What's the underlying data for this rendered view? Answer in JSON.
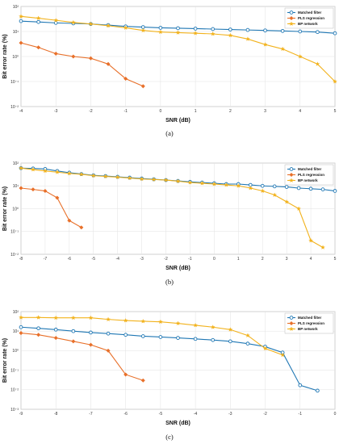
{
  "chart_data": [
    {
      "type": "line",
      "caption": "(a)",
      "xlabel": "SNR (dB)",
      "ylabel": "Bit error rate (%)",
      "xlim": [
        -4,
        5
      ],
      "ylim": [
        0.01,
        100
      ],
      "yscale": "log",
      "xticks": [
        "-4",
        "-3",
        "-2",
        "-1",
        "0",
        "1",
        "2",
        "3",
        "4",
        "5"
      ],
      "yticks": [
        "10⁻²",
        "10⁻¹",
        "10⁰",
        "10¹",
        "10²"
      ],
      "legend": "top-right",
      "series": [
        {
          "name": "Matched filter",
          "color": "#1f77b4",
          "marker": "circle",
          "x": [
            -4,
            -3.5,
            -3,
            -2.5,
            -2,
            -1.5,
            -1,
            -0.5,
            0,
            0.5,
            1,
            1.5,
            2,
            2.5,
            3,
            3.5,
            4,
            4.5,
            5
          ],
          "y": [
            26,
            24,
            22,
            21,
            20,
            18,
            16,
            15,
            14,
            13.5,
            13,
            12.5,
            12,
            11.5,
            11,
            10.5,
            10,
            9.5,
            8.5
          ]
        },
        {
          "name": "PLS regression",
          "color": "#e8702a",
          "marker": "diamond",
          "x": [
            -4,
            -3.5,
            -3,
            -2.5,
            -2,
            -1.5,
            -1,
            -0.5
          ],
          "y": [
            3.5,
            2.3,
            1.3,
            1.0,
            0.85,
            0.5,
            0.13,
            0.065
          ]
        },
        {
          "name": "BP network",
          "color": "#f2b21c",
          "marker": "star",
          "x": [
            -4,
            -3.5,
            -3,
            -2.5,
            -2,
            -1.5,
            -1,
            -0.5,
            0,
            0.5,
            1,
            1.5,
            2,
            2.5,
            3,
            3.5,
            4,
            4.5,
            5
          ],
          "y": [
            40,
            34,
            28,
            23,
            20,
            17,
            14,
            11,
            9.5,
            9,
            8.5,
            8,
            7,
            5,
            3,
            2,
            1,
            0.5,
            0.1
          ]
        }
      ]
    },
    {
      "type": "line",
      "caption": "(b)",
      "xlabel": "SNR (dB)",
      "ylabel": "Bit error rate (%)",
      "xlim": [
        -8,
        5
      ],
      "ylim": [
        0.01,
        100
      ],
      "yscale": "log",
      "xticks": [
        "-8",
        "-7",
        "-6",
        "-5",
        "-4",
        "-3",
        "-2",
        "-1",
        "0",
        "1",
        "2",
        "3",
        "4",
        "5"
      ],
      "yticks": [
        "10⁻²",
        "10⁻¹",
        "10⁰",
        "10¹",
        "10²"
      ],
      "legend": "top-right",
      "series": [
        {
          "name": "Matched filter",
          "color": "#1f77b4",
          "marker": "circle",
          "x": [
            -8,
            -7.5,
            -7,
            -6.5,
            -6,
            -5.5,
            -5,
            -4.5,
            -4,
            -3.5,
            -3,
            -2.5,
            -2,
            -1.5,
            -1,
            -0.5,
            0,
            0.5,
            1,
            1.5,
            2,
            2.5,
            3,
            3.5,
            4,
            4.5,
            5
          ],
          "y": [
            60,
            58,
            55,
            45,
            38,
            33,
            29,
            27,
            25,
            23,
            21,
            19.5,
            18,
            16.5,
            15,
            14,
            13,
            12,
            12,
            11,
            10,
            9.5,
            9,
            8,
            7.5,
            7,
            6
          ]
        },
        {
          "name": "PLS regression",
          "color": "#e8702a",
          "marker": "diamond",
          "x": [
            -8,
            -7.5,
            -7,
            -6.5,
            -6,
            -5.5
          ],
          "y": [
            8,
            7,
            6,
            3,
            0.3,
            0.15
          ]
        },
        {
          "name": "BP network",
          "color": "#f2b21c",
          "marker": "star",
          "x": [
            -8,
            -7.5,
            -7,
            -6.5,
            -6,
            -5.5,
            -5,
            -4.5,
            -4,
            -3.5,
            -3,
            -2.5,
            -2,
            -1.5,
            -1,
            -0.5,
            0,
            0.5,
            1,
            1.5,
            2,
            2.5,
            3,
            3.5,
            4,
            4.5
          ],
          "y": [
            60,
            52,
            45,
            40,
            35,
            32,
            28,
            26,
            24,
            22,
            20,
            19,
            18,
            16,
            14,
            13,
            12,
            11,
            10,
            8,
            6,
            4,
            2,
            1,
            0.04,
            0.02
          ]
        }
      ]
    },
    {
      "type": "line",
      "caption": "(c)",
      "xlabel": "SNR (dB)",
      "ylabel": "Bit error rate (%)",
      "xlim": [
        -9,
        0
      ],
      "ylim": [
        0.001,
        100
      ],
      "yscale": "log",
      "xticks": [
        "-9",
        "-8",
        "-7",
        "-6",
        "-5",
        "-4",
        "-3",
        "-2",
        "-1",
        "0"
      ],
      "yticks": [
        "10⁻³",
        "10⁻²",
        "10⁻¹",
        "10⁰",
        "10¹",
        "10²"
      ],
      "legend": "top-right",
      "series": [
        {
          "name": "Matched filter",
          "color": "#1f77b4",
          "marker": "circle",
          "x": [
            -9,
            -8.5,
            -8,
            -7.5,
            -7,
            -6.5,
            -6,
            -5.5,
            -5,
            -4.5,
            -4,
            -3.5,
            -3,
            -2.5,
            -2,
            -1.5,
            -1,
            -0.5
          ],
          "y": [
            16,
            14,
            12,
            10,
            8.5,
            7.5,
            6.5,
            5.5,
            5,
            4.5,
            4,
            3.5,
            3,
            2.3,
            1.6,
            0.8,
            0.017,
            0.009
          ]
        },
        {
          "name": "PLS regression",
          "color": "#e8702a",
          "marker": "diamond",
          "x": [
            -9,
            -8.5,
            -8,
            -7.5,
            -7,
            -6.5,
            -6,
            -5.5
          ],
          "y": [
            8,
            6.5,
            4.5,
            3,
            2,
            1,
            0.06,
            0.03
          ]
        },
        {
          "name": "BP network",
          "color": "#f2b21c",
          "marker": "star",
          "x": [
            -9,
            -8.5,
            -8,
            -7.5,
            -7,
            -6.5,
            -6,
            -5.5,
            -5,
            -4.5,
            -4,
            -3.5,
            -3,
            -2.5,
            -2,
            -1.5
          ],
          "y": [
            50,
            50,
            48,
            48,
            48,
            40,
            35,
            32,
            30,
            25,
            20,
            16,
            12,
            6,
            1.3,
            0.6
          ]
        }
      ]
    }
  ]
}
